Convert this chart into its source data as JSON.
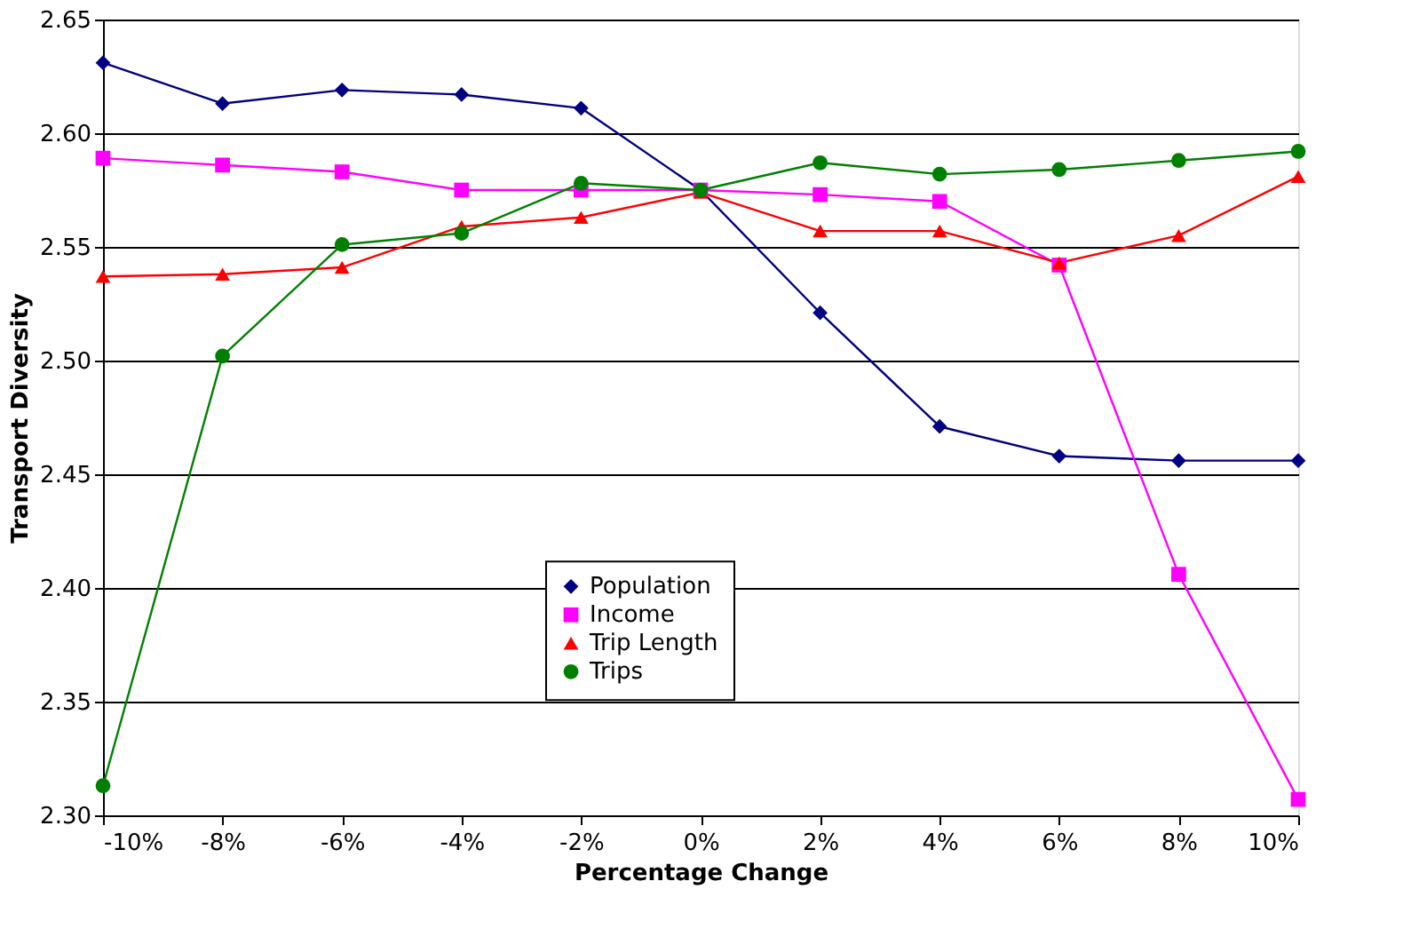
{
  "chart_data": {
    "type": "line",
    "xlabel": "Percentage Change",
    "ylabel": "Transport Diversity",
    "categories": [
      "-10%",
      "-8%",
      "-6%",
      "-4%",
      "-2%",
      "0%",
      "2%",
      "4%",
      "6%",
      "8%",
      "10%"
    ],
    "series": [
      {
        "name": "Population",
        "color": "#000080",
        "marker": "diamond",
        "values": [
          2.631,
          2.613,
          2.619,
          2.617,
          2.611,
          2.575,
          2.521,
          2.471,
          2.458,
          2.456,
          2.456
        ]
      },
      {
        "name": "Income",
        "color": "#ff00ff",
        "marker": "square",
        "values": [
          2.589,
          2.586,
          2.583,
          2.575,
          2.575,
          2.575,
          2.573,
          2.57,
          2.542,
          2.406,
          2.307
        ]
      },
      {
        "name": "Trip Length",
        "color": "#ff0000",
        "marker": "triangle",
        "values": [
          2.537,
          2.538,
          2.541,
          2.559,
          2.563,
          2.574,
          2.557,
          2.557,
          2.543,
          2.555,
          2.581
        ]
      },
      {
        "name": "Trips",
        "color": "#008000",
        "marker": "circle",
        "values": [
          2.313,
          2.502,
          2.551,
          2.556,
          2.578,
          2.575,
          2.587,
          2.582,
          2.584,
          2.588,
          2.592
        ]
      }
    ],
    "ylim": [
      2.3,
      2.65
    ],
    "yticks": [
      {
        "value": 2.3,
        "label": "2.30"
      },
      {
        "value": 2.35,
        "label": "2.35"
      },
      {
        "value": 2.4,
        "label": "2.40"
      },
      {
        "value": 2.45,
        "label": "2.45"
      },
      {
        "value": 2.5,
        "label": "2.50"
      },
      {
        "value": 2.55,
        "label": "2.55"
      },
      {
        "value": 2.6,
        "label": "2.60"
      },
      {
        "value": 2.65,
        "label": "2.65"
      }
    ],
    "grid": "y",
    "legend": "bottom",
    "line_style": "solid"
  }
}
